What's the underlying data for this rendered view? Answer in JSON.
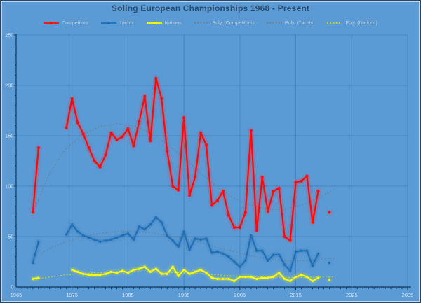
{
  "chart_data": {
    "type": "line",
    "title": "Soling European Championships 1968 - Present",
    "xlabel": "",
    "ylabel": "",
    "xlim": [
      1965,
      2036
    ],
    "ylim": [
      0,
      250
    ],
    "x_ticks": [
      1965,
      1975,
      1985,
      1995,
      2005,
      2015,
      2025,
      2035
    ],
    "y_ticks": [
      0,
      50,
      100,
      150,
      200,
      250
    ],
    "grid": true,
    "legend_position": "top",
    "years": [
      1968,
      1969,
      1970,
      1971,
      1972,
      1973,
      1974,
      1975,
      1976,
      1977,
      1978,
      1979,
      1980,
      1981,
      1982,
      1983,
      1984,
      1985,
      1986,
      1987,
      1988,
      1989,
      1990,
      1991,
      1992,
      1993,
      1994,
      1995,
      1996,
      1997,
      1998,
      1999,
      2000,
      2001,
      2002,
      2003,
      2004,
      2005,
      2006,
      2007,
      2008,
      2009,
      2010,
      2011,
      2012,
      2013,
      2014,
      2015,
      2016,
      2017,
      2018,
      2019,
      2020,
      2021
    ],
    "series": [
      {
        "name": "Competitors",
        "style": "solid",
        "color": "#FF0A0A",
        "glow": "rgba(255,30,30,0.75)",
        "line_width": 2.2,
        "marker_r": 2,
        "values": [
          74,
          138,
          null,
          null,
          null,
          null,
          158,
          187,
          163,
          152,
          138,
          125,
          119,
          131,
          153,
          146,
          149,
          157,
          140,
          164,
          189,
          145,
          207,
          187,
          135,
          100,
          96,
          168,
          91,
          109,
          153,
          141,
          81,
          86,
          95,
          71,
          59,
          59,
          74,
          155,
          56,
          109,
          75,
          95,
          98,
          50,
          46,
          104,
          105,
          110,
          64,
          95,
          null,
          74
        ]
      },
      {
        "name": "Yachts",
        "style": "solid",
        "color": "#1E6FB5",
        "glow": "rgba(20,90,160,0.65)",
        "line_width": 2,
        "marker_r": 1.7,
        "values": [
          24,
          45,
          null,
          null,
          null,
          null,
          52,
          62,
          55,
          51,
          49,
          47,
          45,
          46,
          47,
          49,
          51,
          53,
          47,
          60,
          57,
          62,
          69,
          64,
          51,
          46,
          40,
          55,
          37,
          48,
          47,
          48,
          34,
          35,
          33,
          30,
          25,
          20,
          26,
          51,
          36,
          36,
          26,
          32,
          32,
          22,
          16,
          35,
          36,
          36,
          21,
          33,
          null,
          24
        ]
      },
      {
        "name": "Nations",
        "style": "solid",
        "color": "#FFFF00",
        "glow": "rgba(255,255,0,0.8)",
        "line_width": 2,
        "marker_r": 1.6,
        "values": [
          8,
          9,
          null,
          null,
          null,
          null,
          null,
          17,
          15,
          13,
          12,
          12,
          12,
          13,
          15,
          14,
          16,
          14,
          17,
          18,
          20,
          15,
          18,
          13,
          13,
          20,
          11,
          17,
          13,
          15,
          17,
          14,
          9,
          8,
          8,
          8,
          6,
          10,
          10,
          10,
          8,
          9,
          9,
          10,
          14,
          8,
          6,
          10,
          12,
          10,
          6,
          9,
          null,
          7
        ]
      },
      {
        "name": "Poly. (Competitors)",
        "style": "dotted",
        "color": "#6F7E8A",
        "line_width": 1.1,
        "trend_x": [
          1968,
          1971,
          1974,
          1977,
          1980,
          1983,
          1986,
          1989,
          1992,
          1995,
          1998,
          2001,
          2004,
          2007,
          2010,
          2013,
          2016,
          2019,
          2022
        ],
        "trend_values": [
          74,
          113,
          138,
          152,
          159,
          162,
          160,
          153,
          142,
          128,
          113,
          99,
          88,
          81,
          77,
          77,
          81,
          88,
          97
        ]
      },
      {
        "name": "Poly. (Yachts)",
        "style": "dotted",
        "color": "#6F7E8A",
        "line_width": 1.1,
        "trend_x": [
          1968,
          1971,
          1974,
          1977,
          1980,
          1983,
          1986,
          1989,
          1992,
          1995,
          1998,
          2001,
          2004,
          2007,
          2010,
          2013,
          2016,
          2019,
          2022
        ],
        "trend_values": [
          29,
          38,
          45,
          50,
          53,
          55,
          55,
          54,
          51,
          48,
          44,
          39,
          35,
          31,
          28,
          26,
          26,
          27,
          29
        ]
      },
      {
        "name": "Poly. (Nations)",
        "style": "dotted",
        "color": "#D2DA1E",
        "line_width": 1.1,
        "trend_x": [
          1968,
          1971,
          1974,
          1977,
          1980,
          1983,
          1986,
          1989,
          1992,
          1995,
          1998,
          2001,
          2004,
          2007,
          2010,
          2013,
          2016,
          2019,
          2022
        ],
        "trend_values": [
          7,
          10,
          12,
          13.5,
          14.5,
          15,
          15.2,
          15,
          14.5,
          14,
          13,
          12,
          11,
          10.3,
          9.8,
          9.5,
          9.5,
          9.8,
          10
        ]
      }
    ],
    "colors": {
      "background": "#5B9BD5",
      "gridline": "#4787C1",
      "axis": "#1F4466",
      "tick_label": "#D8E3F0",
      "title": "#2B4D70",
      "legend_text": "#BFCFDC"
    }
  }
}
